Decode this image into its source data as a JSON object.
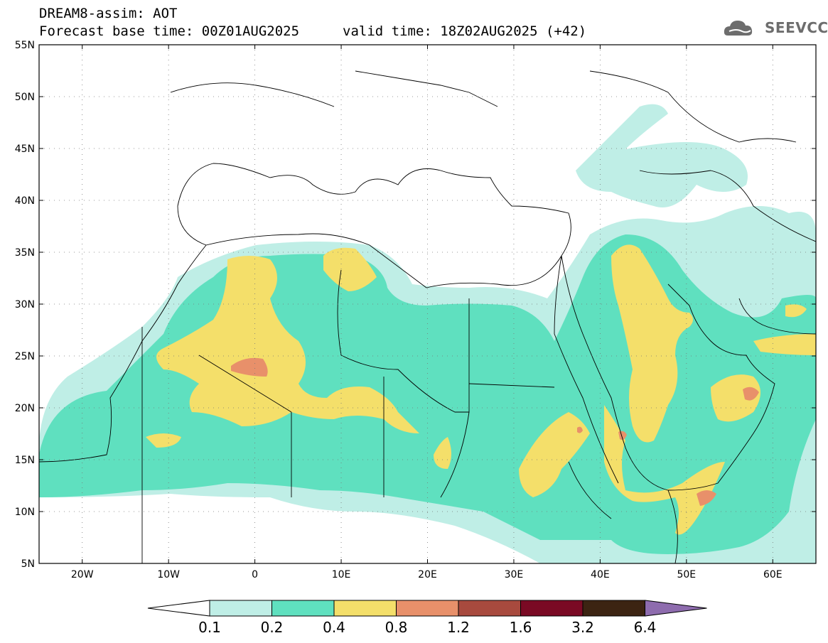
{
  "title": {
    "line1": "DREAM8-assim: AOT",
    "line2": "Forecast base time: 00Z01AUG2025",
    "valid": "valid time: 18Z02AUG2025 (+42)"
  },
  "logo": {
    "text": "SEEVCCC",
    "icon": "cloud-logo-icon",
    "color": "#6d6d6d"
  },
  "axes": {
    "lat_labels": [
      "5N",
      "10N",
      "15N",
      "20N",
      "25N",
      "30N",
      "35N",
      "40N",
      "45N",
      "50N",
      "55N"
    ],
    "lat_values": [
      5,
      10,
      15,
      20,
      25,
      30,
      35,
      40,
      45,
      50,
      55
    ],
    "lon_labels": [
      "20W",
      "10W",
      "0",
      "10E",
      "20E",
      "30E",
      "40E",
      "50E",
      "60E"
    ],
    "lon_values": [
      -20,
      -10,
      0,
      10,
      20,
      30,
      40,
      50,
      60
    ],
    "lon_range": [
      -25,
      65
    ],
    "lat_range": [
      5,
      55
    ],
    "grid": "dotted"
  },
  "colorbar": {
    "labels": [
      "0.1",
      "0.2",
      "0.4",
      "0.8",
      "1.2",
      "1.6",
      "3.2",
      "6.4"
    ],
    "colors": [
      "#bfeee6",
      "#5fe0bf",
      "#f4df6a",
      "#e8906a",
      "#a84a3e",
      "#7a0a24",
      "#3c2412"
    ],
    "under_color": "#ffffff",
    "over_color": "#8e6cae"
  },
  "levels": {
    "c1": "#bfeee6",
    "c2": "#5fe0bf",
    "c3": "#f4df6a",
    "c4": "#e8906a"
  }
}
